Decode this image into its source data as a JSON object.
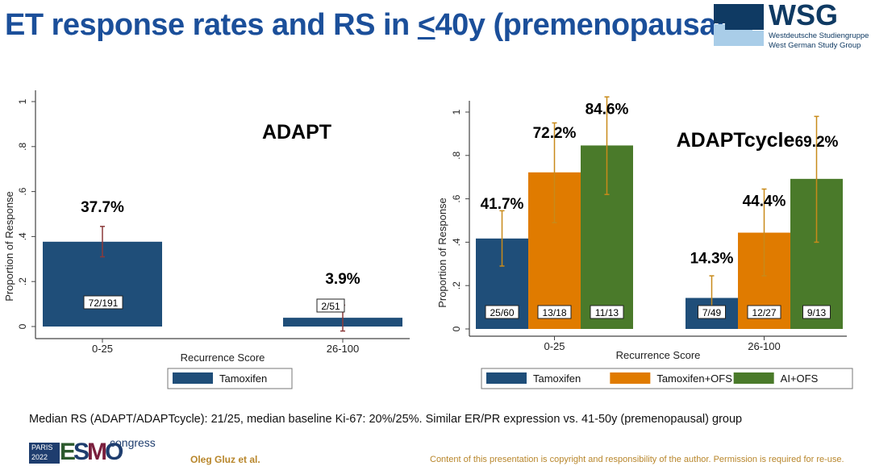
{
  "header": {
    "title_pre": "ET response rates and RS in ",
    "title_underlined": "<",
    "title_post": "40y (premenopausal)",
    "logo": {
      "name": "WSG",
      "line1": "Westdeutsche Studiengruppe",
      "line2": "West German Study Group"
    }
  },
  "chart_data": [
    {
      "type": "bar",
      "title": "ADAPT",
      "xlabel": "Recurrence Score",
      "ylabel": "Proportion of Response",
      "ylim": [
        0,
        1
      ],
      "yticks": [
        "0",
        ".2",
        ".4",
        ".6",
        ".8",
        "1"
      ],
      "categories": [
        "0-25",
        "26-100"
      ],
      "legend_position": "bottom",
      "grid": false,
      "series": [
        {
          "name": "Tamoxifen",
          "color": "#1f4e79",
          "values": [
            0.377,
            0.039
          ],
          "ci_low": [
            0.31,
            -0.02
          ],
          "ci_high": [
            0.445,
            0.095
          ],
          "labels": [
            "37.7%",
            "3.9%"
          ],
          "counts": [
            "72/191",
            "2/51"
          ]
        }
      ],
      "errorbar_color": "#8b3a3a"
    },
    {
      "type": "bar",
      "title": "ADAPTcycle",
      "xlabel": "Recurrence Score",
      "ylabel": "Proportion of Response",
      "ylim": [
        0,
        1.08
      ],
      "yticks": [
        "0",
        ".2",
        ".4",
        ".6",
        ".8",
        "1"
      ],
      "categories": [
        "0-25",
        "26-100"
      ],
      "legend_position": "bottom",
      "grid": false,
      "series": [
        {
          "name": "Tamoxifen",
          "color": "#1f4e79",
          "values": [
            0.417,
            0.143
          ],
          "ci_low": [
            0.29,
            0.06
          ],
          "ci_high": [
            0.545,
            0.245
          ],
          "labels": [
            "41.7%",
            "14.3%"
          ],
          "counts": [
            "25/60",
            "7/49"
          ]
        },
        {
          "name": "Tamoxifen+OFS",
          "color": "#e07b00",
          "values": [
            0.722,
            0.444
          ],
          "ci_low": [
            0.49,
            0.245
          ],
          "ci_high": [
            0.95,
            0.645
          ],
          "labels": [
            "72.2%",
            "44.4%"
          ],
          "counts": [
            "13/18",
            "12/27"
          ]
        },
        {
          "name": "AI+OFS",
          "color": "#4a7a2a",
          "values": [
            0.846,
            0.692
          ],
          "ci_low": [
            0.62,
            0.4
          ],
          "ci_high": [
            1.07,
            0.98
          ],
          "labels": [
            "84.6%",
            "69.2%"
          ],
          "counts": [
            "11/13",
            "9/13"
          ]
        }
      ],
      "errorbar_color": "#c88a1a"
    }
  ],
  "footer": {
    "note": "Median RS (ADAPT/ADAPTcycle): 21/25, median baseline Ki-67: 20%/25%. Similar ER/PR expression vs. 41-50y (premenopausal) group",
    "esmo_city": "PARIS",
    "esmo_year": "2022",
    "esmo_name": "ESMO",
    "esmo_congress": "congress",
    "author": "Oleg Gluz et al.",
    "copyright": "Content of this presentation is copyright and responsibility of the author. Permission is required for re-use."
  }
}
